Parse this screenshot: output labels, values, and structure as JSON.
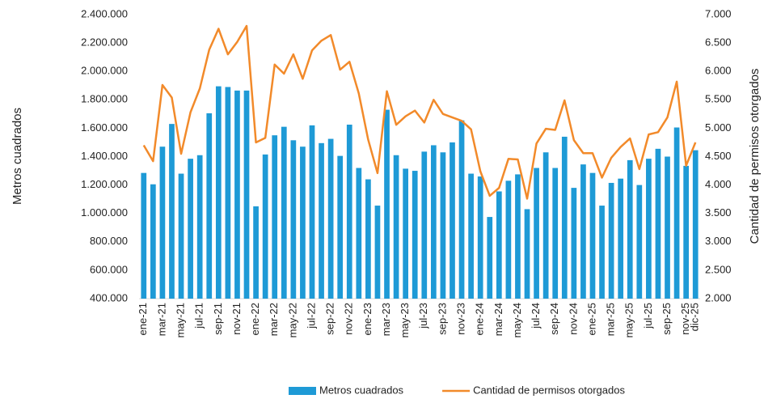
{
  "chart_data": {
    "type": "combo",
    "y_label": "Metros cuadrados",
    "y2_label": "Cantidad de permisos otorgados",
    "categories": [
      "ene-21",
      null,
      "mar-21",
      null,
      "may-21",
      null,
      "jul-21",
      null,
      "sep-21",
      null,
      "nov-21",
      null,
      "ene-22",
      null,
      "mar-22",
      null,
      "may-22",
      null,
      "jul-22",
      null,
      "sep-22",
      null,
      "nov-22",
      null,
      "ene-23",
      null,
      "mar-23",
      null,
      "may-23",
      null,
      "jul-23",
      null,
      "sep-23",
      null,
      "nov-23",
      null,
      "ene-24",
      null,
      "mar-24",
      null,
      "may-24",
      null,
      "jul-24",
      null,
      "sep-24",
      null,
      "nov-24",
      null,
      "ene-25",
      null,
      "mar-25",
      null,
      "may-25",
      null,
      "jul-25",
      null,
      "sep-25",
      null,
      "nov-25",
      "dic-25"
    ],
    "series": [
      {
        "name": "Metros cuadrados",
        "type": "bar",
        "axis": "y",
        "color": "#1e9ad6",
        "values": [
          1285000,
          1205000,
          1470000,
          1630000,
          1280000,
          1385000,
          1410000,
          1705000,
          1895000,
          1890000,
          1865000,
          1865000,
          1050000,
          1415000,
          1550000,
          1610000,
          1515000,
          1470000,
          1620000,
          1495000,
          1525000,
          1405000,
          1625000,
          1320000,
          1240000,
          1055000,
          1730000,
          1410000,
          1315000,
          1300000,
          1435000,
          1480000,
          1430000,
          1500000,
          1655000,
          1280000,
          1260000,
          975000,
          1155000,
          1230000,
          1275000,
          1030000,
          1320000,
          1430000,
          1320000,
          1540000,
          1180000,
          1345000,
          1285000,
          1055000,
          1215000,
          1245000,
          1375000,
          1200000,
          1385000,
          1455000,
          1400000,
          1605000,
          1335000,
          1445000
        ]
      },
      {
        "name": "Cantidad de permisos otorgados",
        "type": "line",
        "axis": "y2",
        "color": "#f28a2a",
        "values": [
          4700,
          4420,
          5760,
          5540,
          4550,
          5280,
          5700,
          6380,
          6750,
          6300,
          6520,
          6800,
          4750,
          4830,
          6120,
          5960,
          6300,
          5870,
          6370,
          6540,
          6640,
          6030,
          6170,
          5610,
          4800,
          4210,
          5650,
          5060,
          5210,
          5310,
          5100,
          5500,
          5250,
          5190,
          5130,
          4980,
          4240,
          3810,
          3950,
          4460,
          4450,
          3760,
          4730,
          4990,
          4970,
          5490,
          4790,
          4560,
          4560,
          4130,
          4480,
          4670,
          4820,
          4280,
          4890,
          4930,
          5190,
          5820,
          4340,
          4750
        ]
      }
    ],
    "ylim": [
      400000,
      2400000
    ],
    "yticks": [
      {
        "value": 400000,
        "label": "400.000"
      },
      {
        "value": 600000,
        "label": "600.000"
      },
      {
        "value": 800000,
        "label": "800.000"
      },
      {
        "value": 1000000,
        "label": "1.000.000"
      },
      {
        "value": 1200000,
        "label": "1.200.000"
      },
      {
        "value": 1400000,
        "label": "1.400.000"
      },
      {
        "value": 1600000,
        "label": "1.600.000"
      },
      {
        "value": 1800000,
        "label": "1.800.000"
      },
      {
        "value": 2000000,
        "label": "2.000.000"
      },
      {
        "value": 2200000,
        "label": "2.200.000"
      },
      {
        "value": 2400000,
        "label": "2.400.000"
      }
    ],
    "y2lim": [
      2000,
      7000
    ],
    "y2ticks": [
      {
        "value": 2000,
        "label": "2.000"
      },
      {
        "value": 2500,
        "label": "2.500"
      },
      {
        "value": 3000,
        "label": "3.000"
      },
      {
        "value": 3500,
        "label": "3.500"
      },
      {
        "value": 4000,
        "label": "4.000"
      },
      {
        "value": 4500,
        "label": "4.500"
      },
      {
        "value": 5000,
        "label": "5.000"
      },
      {
        "value": 5500,
        "label": "5.500"
      },
      {
        "value": 6000,
        "label": "6.000"
      },
      {
        "value": 6500,
        "label": "6.500"
      },
      {
        "value": 7000,
        "label": "7.000"
      }
    ],
    "legend": "bottom"
  }
}
